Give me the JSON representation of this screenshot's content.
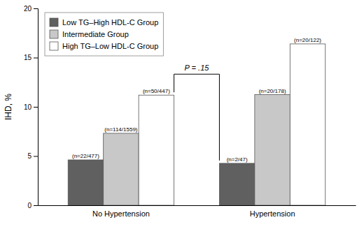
{
  "chart_data": {
    "type": "bar",
    "categories": [
      "No Hypertension",
      "Hypertension"
    ],
    "series": [
      {
        "name": "Low TG–High HDL-C Group",
        "color": "#606060",
        "values": [
          4.61,
          4.26
        ],
        "annotations": [
          "(n=22/477)",
          "(n=2/47)"
        ]
      },
      {
        "name": "Intermediate Group",
        "color": "#c8c8c8",
        "values": [
          7.31,
          11.24
        ],
        "annotations": [
          "(n=114/1559)",
          "(n=20/178)"
        ]
      },
      {
        "name": "High TG–Low HDL-C Group",
        "color": "#ffffff",
        "values": [
          11.19,
          16.39
        ],
        "annotations": [
          "(n=50/447)",
          "(n=20/122)"
        ]
      }
    ],
    "y_label": "IHD, %",
    "annotation": "P = .15",
    "ylim": [
      0,
      20
    ],
    "yticks": [
      0,
      5,
      10,
      15,
      20
    ],
    "grid": false,
    "legend": "upper left"
  }
}
